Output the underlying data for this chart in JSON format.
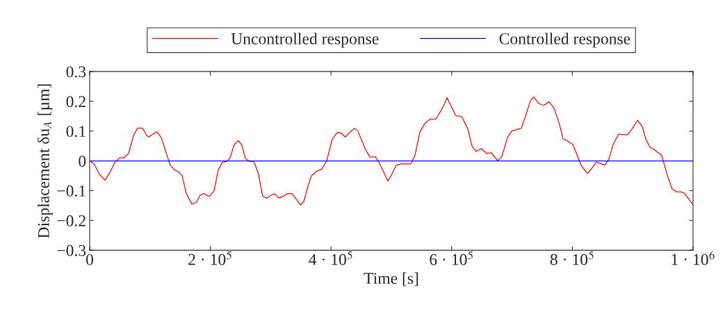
{
  "chart_data": {
    "type": "line",
    "xlabel": "Time [s]",
    "ylabel": "Displacement δu$_{A}$ [µm]",
    "xlim": [
      0,
      1000000
    ],
    "ylim": [
      -0.3,
      0.3
    ],
    "xticks": [
      0,
      {
        "value": 200000,
        "label": "2 · 10$^{5}$"
      },
      {
        "value": 400000,
        "label": "4 · 10$^{5}$"
      },
      {
        "value": 600000,
        "label": "6 · 10$^{5}$"
      },
      {
        "value": 800000,
        "label": "8 · 10$^{5}$"
      },
      {
        "value": 1000000,
        "label": "1 · 10$^{6}$"
      }
    ],
    "yticks": [
      {
        "value": -0.3,
        "label": "−0.3"
      },
      {
        "value": -0.2,
        "label": "−0.2"
      },
      {
        "value": -0.1,
        "label": "−0.1"
      },
      0,
      0.1,
      0.2,
      0.3
    ],
    "grid": false,
    "legend": "top",
    "marker": "none",
    "line_style": "solid",
    "series": [
      {
        "name": "Uncontrolled response",
        "color": "#ff0000",
        "x": [
          0,
          7000,
          16100,
          25300,
          33400,
          41500,
          49500,
          56500,
          64500,
          72600,
          79500,
          87600,
          94500,
          97900,
          104800,
          111700,
          118700,
          126700,
          133600,
          140500,
          147500,
          153200,
          160100,
          169300,
          176300,
          183200,
          188900,
          198100,
          206200,
          213100,
          220000,
          227000,
          232700,
          239600,
          246500,
          252300,
          258100,
          265000,
          271900,
          279900,
          286800,
          293800,
          300700,
          306400,
          313400,
          320300,
          327200,
          335200,
          341000,
          349100,
          354800,
          361700,
          367500,
          375600,
          384800,
          392800,
          402100,
          410100,
          415900,
          423900,
          429700,
          438900,
          444700,
          450400,
          457400,
          464300,
          473500,
          479200,
          487300,
          494200,
          500000,
          508000,
          516100,
          532200,
          539100,
          547200,
          556400,
          564500,
          573700,
          581800,
          588700,
          592100,
          600200,
          607100,
          611700,
          617500,
          626700,
          633600,
          640500,
          649700,
          657800,
          665900,
          676200,
          683100,
          692400,
          699300,
          706200,
          715400,
          723500,
          730400,
          736100,
          744200,
          752300,
          761500,
          769600,
          778800,
          784500,
          790300,
          800700,
          806400,
          814500,
          824900,
          834100,
          839800,
          845600,
          853700,
          860600,
          867500,
          876700,
          883600,
          891700,
          899800,
          907800,
          915900,
          921600,
          928500,
          936600,
          948100,
          957300,
          965400,
          973400,
          980400,
          986100,
          991900,
          1000000
        ],
        "values": [
          0,
          -0.01,
          -0.045,
          -0.065,
          -0.04,
          -0.005,
          0.01,
          0.01,
          0.025,
          0.085,
          0.11,
          0.11,
          0.085,
          0.08,
          0.09,
          0.097,
          0.078,
          0.027,
          -0.015,
          -0.03,
          -0.037,
          -0.05,
          -0.11,
          -0.145,
          -0.14,
          -0.115,
          -0.11,
          -0.12,
          -0.1,
          -0.03,
          -0.005,
          -0.002,
          0.01,
          0.055,
          0.068,
          0.052,
          0.008,
          -0.002,
          -0.001,
          -0.045,
          -0.12,
          -0.125,
          -0.115,
          -0.11,
          -0.125,
          -0.12,
          -0.11,
          -0.11,
          -0.125,
          -0.148,
          -0.137,
          -0.085,
          -0.05,
          -0.036,
          -0.027,
          0.0,
          0.073,
          0.095,
          0.094,
          0.08,
          0.094,
          0.11,
          0.1,
          0.07,
          0.037,
          0.013,
          0.013,
          -0.004,
          -0.038,
          -0.068,
          -0.048,
          -0.015,
          -0.01,
          -0.01,
          0.018,
          0.097,
          0.128,
          0.14,
          0.14,
          0.167,
          0.195,
          0.212,
          0.179,
          0.151,
          0.151,
          0.146,
          0.107,
          0.05,
          0.032,
          0.041,
          0.025,
          0.027,
          0.0,
          0.015,
          0.078,
          0.1,
          0.104,
          0.11,
          0.157,
          0.202,
          0.214,
          0.193,
          0.186,
          0.198,
          0.177,
          0.121,
          0.074,
          0.069,
          0.055,
          0.027,
          -0.015,
          -0.043,
          -0.02,
          -0.004,
          -0.008,
          -0.015,
          0.006,
          0.055,
          0.09,
          0.088,
          0.088,
          0.11,
          0.136,
          0.115,
          0.074,
          0.046,
          0.036,
          0.018,
          -0.048,
          -0.095,
          -0.104,
          -0.104,
          -0.109,
          -0.125,
          -0.148
        ]
      },
      {
        "name": "Controlled response",
        "color": "#0000ff",
        "x": [
          0,
          1000000
        ],
        "values": [
          0,
          0
        ]
      }
    ]
  }
}
